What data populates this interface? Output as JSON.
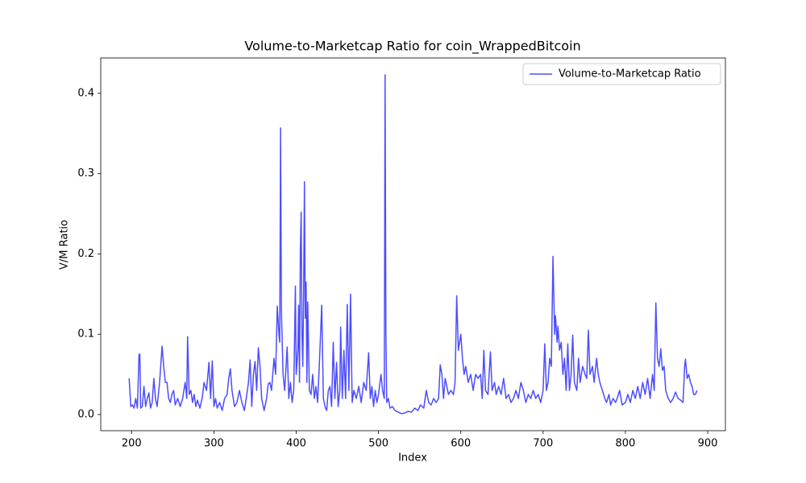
{
  "chart_data": {
    "type": "line",
    "title": "Volume-to-Marketcap Ratio for coin_WrappedBitcoin",
    "x_label": "Index",
    "y_label": "V/M Ratio",
    "x": [
      197,
      199,
      201,
      203,
      205,
      207,
      209,
      210,
      211,
      213,
      215,
      217,
      219,
      221,
      223,
      225,
      227,
      229,
      231,
      234,
      237,
      239,
      241,
      243,
      245,
      247,
      249,
      251,
      253,
      256,
      259,
      262,
      265,
      267,
      268,
      270,
      272,
      274,
      276,
      278,
      280,
      283,
      286,
      288,
      291,
      294,
      296,
      298,
      300,
      302,
      304,
      307,
      310,
      313,
      316,
      318,
      320,
      322,
      325,
      328,
      331,
      334,
      337,
      340,
      342,
      344,
      346,
      348,
      350,
      352,
      354,
      356,
      358,
      361,
      364,
      366,
      368,
      370,
      373,
      375,
      377,
      379,
      380,
      381,
      382,
      384,
      386,
      389,
      391,
      393,
      395,
      397,
      399,
      400,
      402,
      403,
      404,
      405,
      406,
      407,
      408,
      409,
      410,
      411,
      412,
      413,
      414,
      416,
      418,
      420,
      422,
      424,
      426,
      428,
      431,
      433,
      435,
      437,
      439,
      441,
      443,
      445,
      447,
      449,
      451,
      453,
      454,
      456,
      458,
      460,
      462,
      464,
      466,
      468,
      470,
      473,
      476,
      479,
      482,
      485,
      488,
      490,
      492,
      494,
      496,
      498,
      500,
      503,
      505,
      507,
      508,
      509,
      510,
      512,
      514,
      517,
      520,
      524,
      528,
      532,
      536,
      540,
      544,
      548,
      551,
      555,
      558,
      561,
      564,
      567,
      570,
      573,
      575,
      577,
      579,
      581,
      583,
      585,
      588,
      591,
      593,
      595,
      597,
      600,
      602,
      604,
      606,
      609,
      612,
      615,
      618,
      621,
      624,
      626,
      628,
      630,
      633,
      636,
      638,
      641,
      643,
      646,
      649,
      652,
      655,
      658,
      661,
      664,
      667,
      670,
      673,
      676,
      679,
      682,
      685,
      688,
      691,
      694,
      697,
      700,
      702,
      704,
      706,
      708,
      710,
      712,
      714,
      715,
      717,
      718,
      720,
      722,
      724,
      726,
      728,
      730,
      732,
      734,
      736,
      738,
      741,
      743,
      745,
      748,
      751,
      753,
      755,
      757,
      760,
      762,
      765,
      767,
      769,
      772,
      775,
      777,
      780,
      782,
      785,
      788,
      790,
      793,
      796,
      800,
      803,
      806,
      809,
      812,
      815,
      818,
      821,
      824,
      827,
      830,
      833,
      835,
      837,
      839,
      841,
      843,
      845,
      847,
      849,
      852,
      855,
      858,
      861,
      864,
      867,
      870,
      872,
      873,
      875,
      877,
      879,
      881,
      883,
      885,
      887
    ],
    "series": [
      {
        "name": "Volume-to-Marketcap Ratio",
        "color": "#4d4dff",
        "values": [
          0.045,
          0.01,
          0.012,
          0.008,
          0.02,
          0.008,
          0.075,
          0.075,
          0.008,
          0.01,
          0.035,
          0.01,
          0.02,
          0.027,
          0.008,
          0.015,
          0.045,
          0.02,
          0.01,
          0.04,
          0.085,
          0.06,
          0.04,
          0.04,
          0.02,
          0.015,
          0.025,
          0.03,
          0.012,
          0.02,
          0.01,
          0.02,
          0.04,
          0.02,
          0.097,
          0.025,
          0.03,
          0.015,
          0.025,
          0.01,
          0.018,
          0.008,
          0.022,
          0.04,
          0.03,
          0.065,
          0.02,
          0.067,
          0.01,
          0.02,
          0.008,
          0.015,
          0.005,
          0.02,
          0.025,
          0.045,
          0.057,
          0.03,
          0.01,
          0.015,
          0.03,
          0.015,
          0.005,
          0.025,
          0.04,
          0.068,
          0.01,
          0.05,
          0.066,
          0.03,
          0.083,
          0.06,
          0.02,
          0.005,
          0.02,
          0.038,
          0.04,
          0.03,
          0.07,
          0.05,
          0.135,
          0.1,
          0.09,
          0.357,
          0.13,
          0.05,
          0.03,
          0.084,
          0.02,
          0.04,
          0.015,
          0.03,
          0.16,
          0.05,
          0.08,
          0.136,
          0.04,
          0.2,
          0.252,
          0.1,
          0.06,
          0.15,
          0.29,
          0.12,
          0.165,
          0.04,
          0.14,
          0.03,
          0.025,
          0.05,
          0.02,
          0.035,
          0.015,
          0.06,
          0.136,
          0.02,
          0.01,
          0.005,
          0.03,
          0.035,
          0.01,
          0.09,
          0.02,
          0.065,
          0.01,
          0.03,
          0.109,
          0.02,
          0.08,
          0.02,
          0.137,
          0.03,
          0.15,
          0.015,
          0.03,
          0.02,
          0.035,
          0.015,
          0.04,
          0.03,
          0.077,
          0.02,
          0.035,
          0.01,
          0.03,
          0.015,
          0.025,
          0.05,
          0.03,
          0.02,
          0.423,
          0.1,
          0.015,
          0.02,
          0.008,
          0.01,
          0.005,
          0.003,
          0.001,
          0.002,
          0.004,
          0.003,
          0.008,
          0.005,
          0.012,
          0.008,
          0.03,
          0.015,
          0.012,
          0.02,
          0.015,
          0.02,
          0.062,
          0.05,
          0.02,
          0.045,
          0.035,
          0.025,
          0.03,
          0.025,
          0.04,
          0.148,
          0.08,
          0.1,
          0.07,
          0.05,
          0.06,
          0.04,
          0.05,
          0.03,
          0.05,
          0.045,
          0.05,
          0.02,
          0.08,
          0.03,
          0.025,
          0.078,
          0.03,
          0.04,
          0.025,
          0.035,
          0.025,
          0.045,
          0.02,
          0.025,
          0.015,
          0.02,
          0.03,
          0.02,
          0.04,
          0.03,
          0.015,
          0.025,
          0.02,
          0.03,
          0.02,
          0.025,
          0.015,
          0.03,
          0.088,
          0.03,
          0.04,
          0.07,
          0.06,
          0.197,
          0.1,
          0.123,
          0.09,
          0.11,
          0.08,
          0.09,
          0.05,
          0.07,
          0.03,
          0.088,
          0.03,
          0.05,
          0.099,
          0.04,
          0.03,
          0.07,
          0.04,
          0.06,
          0.05,
          0.045,
          0.105,
          0.05,
          0.06,
          0.04,
          0.07,
          0.05,
          0.04,
          0.03,
          0.02,
          0.015,
          0.025,
          0.012,
          0.02,
          0.015,
          0.02,
          0.03,
          0.012,
          0.015,
          0.025,
          0.015,
          0.03,
          0.02,
          0.035,
          0.02,
          0.04,
          0.025,
          0.045,
          0.02,
          0.05,
          0.03,
          0.139,
          0.07,
          0.06,
          0.082,
          0.055,
          0.06,
          0.03,
          0.02,
          0.015,
          0.02,
          0.028,
          0.02,
          0.018,
          0.015,
          0.06,
          0.069,
          0.045,
          0.05,
          0.04,
          0.035,
          0.025,
          0.025,
          0.03
        ]
      }
    ],
    "xlim": [
      162.5,
      921.5
    ],
    "xticks": [
      200,
      300,
      400,
      500,
      600,
      700,
      800,
      900
    ],
    "ylim": [
      -0.0201,
      0.4441
    ],
    "yticks": [
      {
        "value": 0,
        "label": "0.0"
      },
      0.1,
      0.2,
      0.3,
      0.4
    ],
    "legend": "upper right"
  }
}
